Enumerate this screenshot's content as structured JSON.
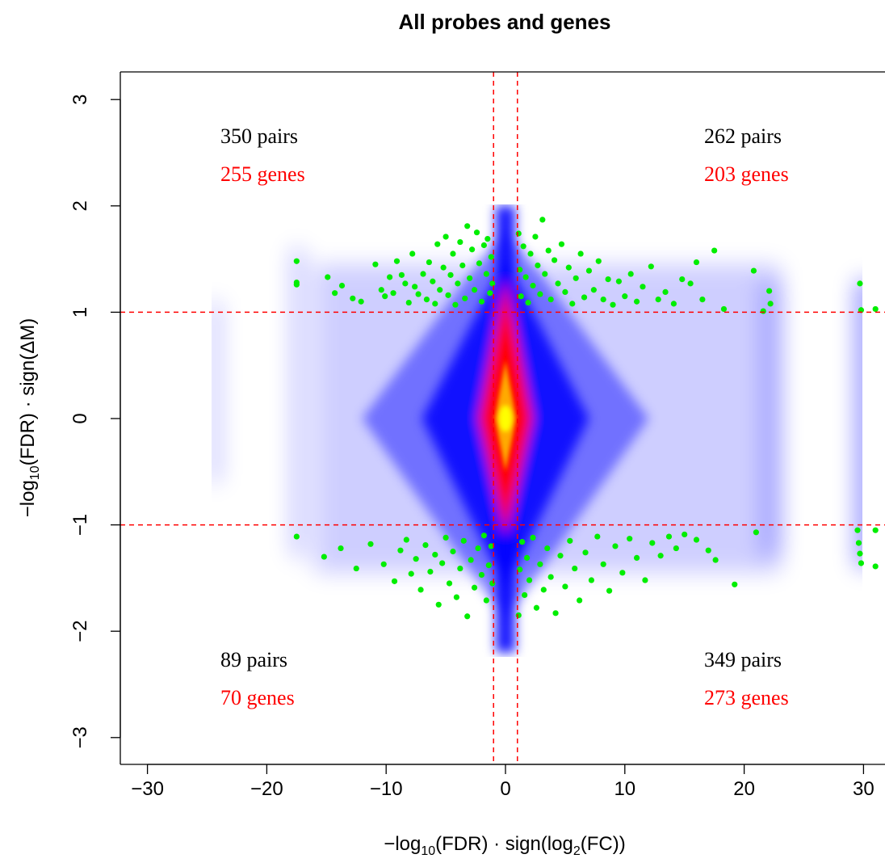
{
  "chart_data": {
    "type": "scatter",
    "title": "All probes and genes",
    "xlabel": {
      "pre": "−log",
      "sub": "10",
      "mid": "(FDR) · sign(log",
      "sub2": "2",
      "post": "(FC))"
    },
    "ylabel": {
      "pre": "−log",
      "sub": "10",
      "post": "(FDR) · sign(ΔM)"
    },
    "xlim": [
      -32.5,
      31.5
    ],
    "ylim": [
      -3.2,
      3.25
    ],
    "x_ticks": [
      -30,
      -20,
      -10,
      0,
      10,
      20,
      30
    ],
    "x_tick_labels": [
      "−30",
      "−20",
      "−10",
      "0",
      "10",
      "20",
      "30"
    ],
    "y_ticks": [
      -3,
      -2,
      -1,
      0,
      1,
      2,
      3
    ],
    "y_tick_labels": [
      "−3",
      "−2",
      "−1",
      "0",
      "1",
      "2",
      "3"
    ],
    "thresholds": {
      "x": [
        -1,
        1
      ],
      "y": [
        -1,
        1
      ],
      "color": "#ff0000"
    },
    "density": {
      "x_range": [
        -24.7,
        31
      ],
      "y_range": [
        -2.2,
        2.0
      ],
      "colors": [
        "#ffffff",
        "#0000ff",
        "#ff0000",
        "#ffff00"
      ]
    },
    "highlight_color": "#00ee00",
    "quadrants": [
      {
        "pairs": "350 pairs",
        "genes": "255 genes"
      },
      {
        "pairs": "262 pairs",
        "genes": "203 genes"
      },
      {
        "pairs": "89 pairs",
        "genes": "70 genes"
      },
      {
        "pairs": "349 pairs",
        "genes": "273 genes"
      }
    ],
    "points": [
      [
        -17.5,
        1.48
      ],
      [
        -17.5,
        1.28
      ],
      [
        -17.5,
        1.26
      ],
      [
        -14.9,
        1.33
      ],
      [
        -14.3,
        1.18
      ],
      [
        -13.7,
        1.25
      ],
      [
        -12.8,
        1.13
      ],
      [
        -12.1,
        1.1
      ],
      [
        -10.9,
        1.45
      ],
      [
        -10.4,
        1.21
      ],
      [
        -10.1,
        1.15
      ],
      [
        -9.7,
        1.33
      ],
      [
        -9.4,
        1.18
      ],
      [
        -9.1,
        1.48
      ],
      [
        -8.7,
        1.35
      ],
      [
        -8.4,
        1.27
      ],
      [
        -8.1,
        1.09
      ],
      [
        -7.8,
        1.55
      ],
      [
        -7.6,
        1.24
      ],
      [
        -7.3,
        1.17
      ],
      [
        -6.9,
        1.36
      ],
      [
        -6.6,
        1.12
      ],
      [
        -6.4,
        1.47
      ],
      [
        -6.1,
        1.29
      ],
      [
        -5.9,
        1.08
      ],
      [
        -5.7,
        1.64
      ],
      [
        -5.5,
        1.21
      ],
      [
        -5.2,
        1.42
      ],
      [
        -5.0,
        1.71
      ],
      [
        -4.8,
        1.16
      ],
      [
        -4.6,
        1.35
      ],
      [
        -4.4,
        1.55
      ],
      [
        -4.2,
        1.07
      ],
      [
        -4.0,
        1.27
      ],
      [
        -3.8,
        1.66
      ],
      [
        -3.6,
        1.44
      ],
      [
        -3.4,
        1.13
      ],
      [
        -3.2,
        1.81
      ],
      [
        -3.0,
        1.32
      ],
      [
        -2.8,
        1.59
      ],
      [
        -2.6,
        1.21
      ],
      [
        -2.4,
        1.75
      ],
      [
        -2.2,
        1.46
      ],
      [
        -2.0,
        1.1
      ],
      [
        -1.8,
        1.63
      ],
      [
        -1.6,
        1.36
      ],
      [
        -1.5,
        1.69
      ],
      [
        -1.3,
        1.18
      ],
      [
        -1.2,
        1.52
      ],
      [
        -1.1,
        1.27
      ],
      [
        1.1,
        1.74
      ],
      [
        1.2,
        1.4
      ],
      [
        1.3,
        1.15
      ],
      [
        1.5,
        1.62
      ],
      [
        1.7,
        1.33
      ],
      [
        1.9,
        1.09
      ],
      [
        2.1,
        1.55
      ],
      [
        2.3,
        1.25
      ],
      [
        2.5,
        1.71
      ],
      [
        2.7,
        1.44
      ],
      [
        2.9,
        1.17
      ],
      [
        3.1,
        1.87
      ],
      [
        3.3,
        1.36
      ],
      [
        3.6,
        1.58
      ],
      [
        3.8,
        1.12
      ],
      [
        4.1,
        1.49
      ],
      [
        4.4,
        1.27
      ],
      [
        4.7,
        1.64
      ],
      [
        5.0,
        1.19
      ],
      [
        5.3,
        1.42
      ],
      [
        5.6,
        1.08
      ],
      [
        5.9,
        1.32
      ],
      [
        6.3,
        1.55
      ],
      [
        6.6,
        1.14
      ],
      [
        7.0,
        1.39
      ],
      [
        7.4,
        1.21
      ],
      [
        7.8,
        1.48
      ],
      [
        8.2,
        1.12
      ],
      [
        8.6,
        1.31
      ],
      [
        9.0,
        1.07
      ],
      [
        9.5,
        1.29
      ],
      [
        10.0,
        1.15
      ],
      [
        10.5,
        1.36
      ],
      [
        11.0,
        1.1
      ],
      [
        11.5,
        1.24
      ],
      [
        12.2,
        1.43
      ],
      [
        12.8,
        1.12
      ],
      [
        13.4,
        1.19
      ],
      [
        14.1,
        1.08
      ],
      [
        14.8,
        1.31
      ],
      [
        15.5,
        1.27
      ],
      [
        16.0,
        1.47
      ],
      [
        16.5,
        1.12
      ],
      [
        17.5,
        1.58
      ],
      [
        18.3,
        1.03
      ],
      [
        20.8,
        1.39
      ],
      [
        21.6,
        1.01
      ],
      [
        22.1,
        1.2
      ],
      [
        22.2,
        1.08
      ],
      [
        29.7,
        1.27
      ],
      [
        29.8,
        1.02
      ],
      [
        31.0,
        1.03
      ],
      [
        -17.5,
        -1.11
      ],
      [
        -15.2,
        -1.3
      ],
      [
        -13.8,
        -1.22
      ],
      [
        -12.5,
        -1.41
      ],
      [
        -11.3,
        -1.18
      ],
      [
        -10.2,
        -1.37
      ],
      [
        -9.3,
        -1.53
      ],
      [
        -8.8,
        -1.24
      ],
      [
        -8.3,
        -1.14
      ],
      [
        -7.9,
        -1.46
      ],
      [
        -7.5,
        -1.32
      ],
      [
        -7.1,
        -1.61
      ],
      [
        -6.7,
        -1.19
      ],
      [
        -6.3,
        -1.44
      ],
      [
        -5.9,
        -1.28
      ],
      [
        -5.6,
        -1.75
      ],
      [
        -5.3,
        -1.36
      ],
      [
        -5.0,
        -1.12
      ],
      [
        -4.7,
        -1.55
      ],
      [
        -4.4,
        -1.25
      ],
      [
        -4.1,
        -1.68
      ],
      [
        -3.8,
        -1.41
      ],
      [
        -3.5,
        -1.15
      ],
      [
        -3.2,
        -1.86
      ],
      [
        -2.9,
        -1.33
      ],
      [
        -2.6,
        -1.59
      ],
      [
        -2.3,
        -1.22
      ],
      [
        -2.0,
        -1.47
      ],
      [
        -1.8,
        -1.1
      ],
      [
        -1.6,
        -1.71
      ],
      [
        -1.4,
        -1.38
      ],
      [
        -1.2,
        -1.2
      ],
      [
        -1.1,
        -1.55
      ],
      [
        1.1,
        -1.85
      ],
      [
        1.2,
        -1.42
      ],
      [
        1.4,
        -1.16
      ],
      [
        1.6,
        -1.66
      ],
      [
        1.8,
        -1.31
      ],
      [
        2.0,
        -1.52
      ],
      [
        2.3,
        -1.12
      ],
      [
        2.6,
        -1.78
      ],
      [
        2.9,
        -1.37
      ],
      [
        3.2,
        -1.61
      ],
      [
        3.5,
        -1.22
      ],
      [
        3.8,
        -1.49
      ],
      [
        4.2,
        -1.83
      ],
      [
        4.6,
        -1.29
      ],
      [
        5.0,
        -1.58
      ],
      [
        5.4,
        -1.15
      ],
      [
        5.8,
        -1.41
      ],
      [
        6.2,
        -1.71
      ],
      [
        6.7,
        -1.26
      ],
      [
        7.2,
        -1.52
      ],
      [
        7.7,
        -1.11
      ],
      [
        8.2,
        -1.37
      ],
      [
        8.7,
        -1.62
      ],
      [
        9.2,
        -1.2
      ],
      [
        9.8,
        -1.45
      ],
      [
        10.4,
        -1.13
      ],
      [
        11.0,
        -1.31
      ],
      [
        11.7,
        -1.52
      ],
      [
        12.3,
        -1.17
      ],
      [
        13.0,
        -1.29
      ],
      [
        13.7,
        -1.11
      ],
      [
        14.3,
        -1.22
      ],
      [
        15.0,
        -1.09
      ],
      [
        16.0,
        -1.14
      ],
      [
        17.0,
        -1.24
      ],
      [
        17.6,
        -1.33
      ],
      [
        19.2,
        -1.56
      ],
      [
        21.0,
        -1.07
      ],
      [
        29.5,
        -1.05
      ],
      [
        29.6,
        -1.17
      ],
      [
        29.7,
        -1.27
      ],
      [
        29.8,
        -1.36
      ],
      [
        31.0,
        -1.05
      ],
      [
        31.0,
        -1.39
      ]
    ]
  }
}
